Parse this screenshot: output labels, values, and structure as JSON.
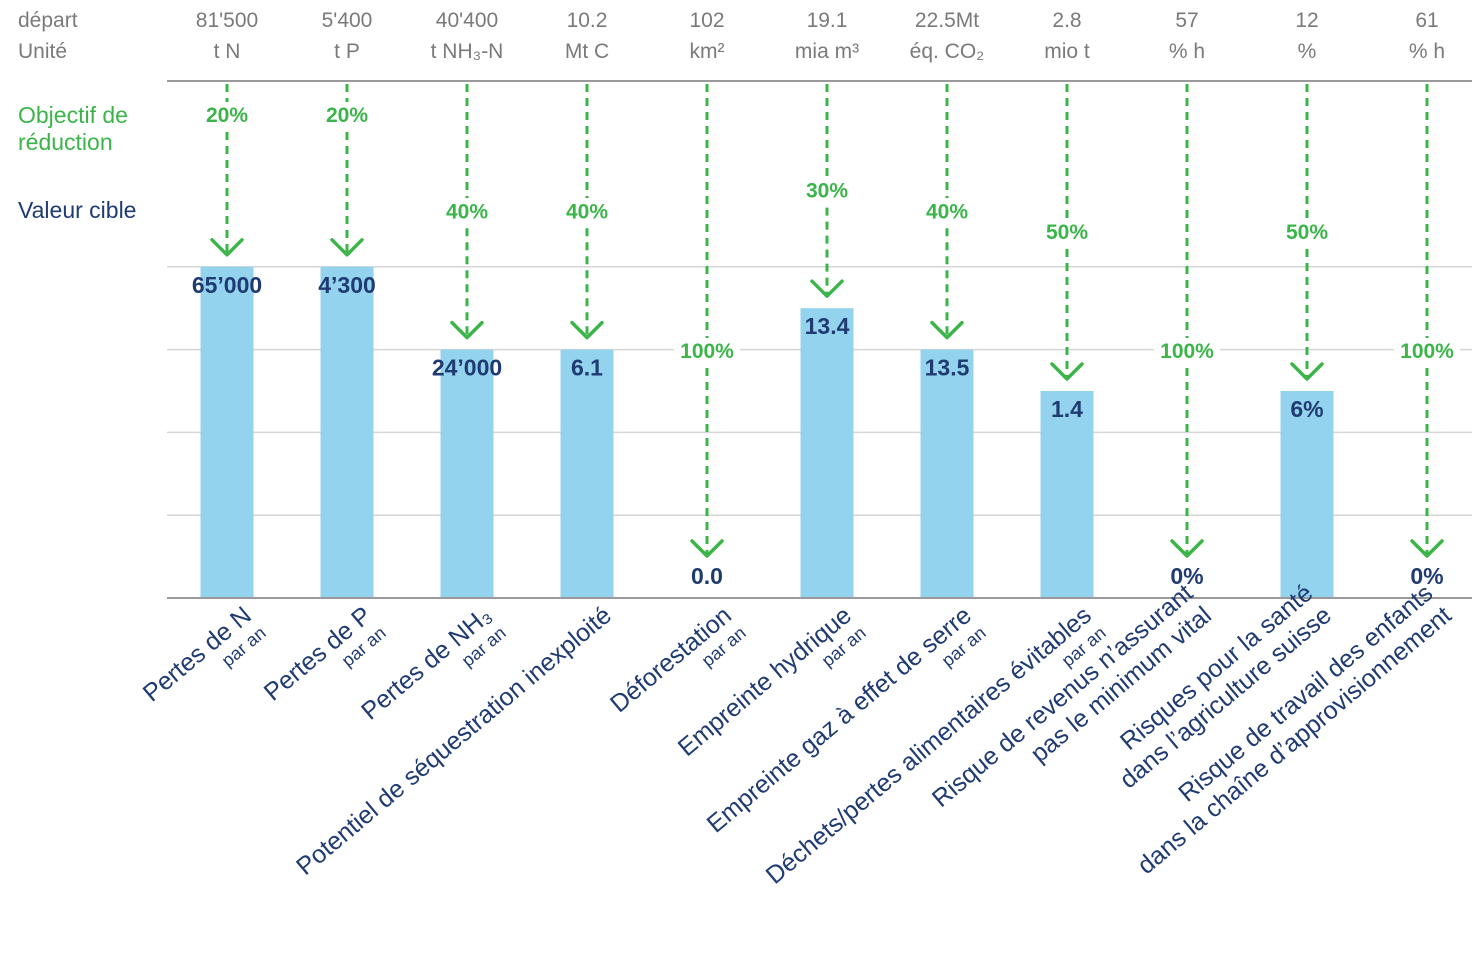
{
  "colors": {
    "bar": "#93d3ee",
    "green": "#3bb54a",
    "navy": "#1f3b72",
    "grey": "#7a7a7a",
    "grid": "#d6d6d6",
    "axis": "#9a9a9a"
  },
  "header": {
    "start_label": "départ",
    "unit_label": "Unité"
  },
  "row_labels": {
    "reduction": [
      "Objectif de",
      "réduction"
    ],
    "target": "Valeur cible"
  },
  "per_year_label": "par an",
  "chart_data": {
    "type": "bar",
    "categories": [
      {
        "lines": [
          "Pertes de N"
        ],
        "per_year": true
      },
      {
        "lines": [
          "Pertes de P"
        ],
        "per_year": true
      },
      {
        "lines": [
          "Pertes de NH₃"
        ],
        "per_year": true
      },
      {
        "lines": [
          "Potentiel de séquestration inexploité"
        ],
        "per_year": false
      },
      {
        "lines": [
          "Déforestation"
        ],
        "per_year": true
      },
      {
        "lines": [
          "Empreinte hydrique"
        ],
        "per_year": true
      },
      {
        "lines": [
          "Empreinte gaz à effet de serre"
        ],
        "per_year": true
      },
      {
        "lines": [
          "Déchets/pertes alimentaires évitables"
        ],
        "per_year": true
      },
      {
        "lines": [
          "Risque de revenus n’assurant",
          "pas le minimum vital"
        ],
        "per_year": false
      },
      {
        "lines": [
          "Risques pour la santé",
          "dans l’agriculture suisse"
        ],
        "per_year": false
      },
      {
        "lines": [
          "Risque de travail des enfants",
          "dans la chaîne d’approvisionnement"
        ],
        "per_year": false
      }
    ],
    "start_values": [
      "81'500",
      "5'400",
      "40'400",
      "10.2",
      "102",
      "19.1",
      "22.5Mt",
      "2.8",
      "57",
      "12",
      "61"
    ],
    "units": [
      "t N",
      "t P",
      "t NH₃-N",
      "Mt C",
      "km²",
      "mia m³",
      "éq. CO₂",
      "mio t",
      "% h",
      "%",
      "% h"
    ],
    "reduction_targets": [
      "20%",
      "20%",
      "40%",
      "40%",
      "100%",
      "30%",
      "40%",
      "50%",
      "100%",
      "50%",
      "100%"
    ],
    "target_values": [
      "65’000",
      "4’300",
      "24’000",
      "6.1",
      "0.0",
      "13.4",
      "13.5",
      "1.4",
      "0%",
      "6%",
      "0%"
    ],
    "remaining_fraction": [
      0.8,
      0.8,
      0.6,
      0.6,
      0,
      0.7,
      0.6,
      0.5,
      0,
      0.5,
      0
    ]
  }
}
